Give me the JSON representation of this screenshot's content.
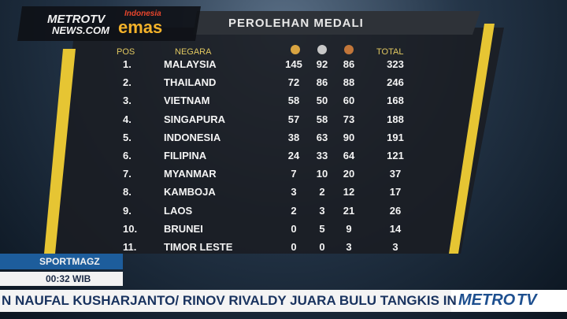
{
  "logo": {
    "brand": "METROTV",
    "brand_sub": "NEWS.COM",
    "emas_top": "Indonesia",
    "emas": "emas"
  },
  "title": "PEROLEHAN MEDALI",
  "table": {
    "headers": {
      "pos": "POS",
      "country": "NEGARA",
      "total": "TOTAL"
    },
    "rows": [
      [
        "1.",
        "MALAYSIA",
        145,
        92,
        86,
        323
      ],
      [
        "2.",
        "THAILAND",
        72,
        86,
        88,
        246
      ],
      [
        "3.",
        "VIETNAM",
        58,
        50,
        60,
        168
      ],
      [
        "4.",
        "SINGAPURA",
        57,
        58,
        73,
        188
      ],
      [
        "5.",
        "INDONESIA",
        38,
        63,
        90,
        191
      ],
      [
        "6.",
        "FILIPINA",
        24,
        33,
        64,
        121
      ],
      [
        "7.",
        "MYANMAR",
        7,
        10,
        20,
        37
      ],
      [
        "8.",
        "KAMBOJA",
        3,
        2,
        12,
        17
      ],
      [
        "9.",
        "LAOS",
        2,
        3,
        21,
        26
      ],
      [
        "10.",
        "BRUNEI",
        0,
        5,
        9,
        14
      ],
      [
        "11.",
        "TIMOR LESTE",
        0,
        0,
        3,
        3
      ]
    ]
  },
  "program": "SPORTMAGZ",
  "time": "00:32 WIB",
  "ticker": "N NAUFAL KUSHARJANTO/ RINOV RIVALDY JUARA BULU TANGKIS IN",
  "channel": {
    "left": "METRO",
    "right": "TV"
  }
}
